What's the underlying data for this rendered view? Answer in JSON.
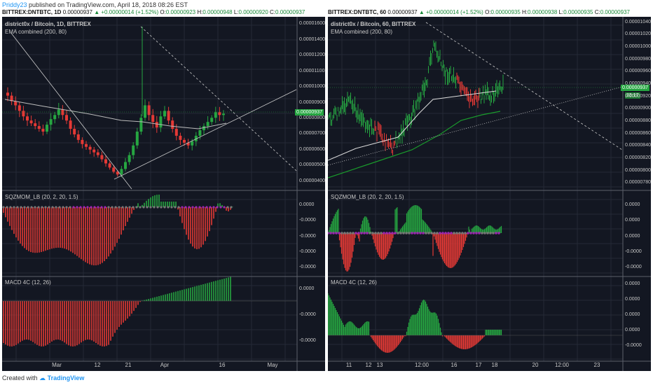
{
  "header": {
    "author": "Priddy23",
    "published_text": "published on TradingView.com, April 18, 2018 08:26 EST"
  },
  "footer": {
    "created_with": "Created with",
    "brand": "TradingView"
  },
  "colors": {
    "background": "#131722",
    "bull": "#26a641",
    "bear": "#e53935",
    "squeeze_dot": "#9c27b0",
    "text": "#c8c8c8"
  },
  "panels": [
    {
      "id": "left",
      "ticker": "BITTREX:DNTBTC, 1D",
      "last": "0.00000937",
      "change": "+0.00000014 (+1.52%)",
      "o": "0.00000923",
      "h": "0.00000948",
      "l": "0.00000920",
      "c": "0.00000937",
      "title": "district0x / Bitcoin, 1D, BITTREX",
      "ema_label": "EMA combined (200, 80)",
      "price_box": "0.00000937",
      "price_yticks": [
        "0.00001600",
        "0.00001400",
        "0.00001200",
        "0.00001100",
        "0.00001000",
        "0.00000900",
        "0.00000800",
        "0.00000700",
        "0.00000600",
        "0.00000500",
        "0.00000400"
      ],
      "sqz_label": "SQZMOM_LB (20, 2, 20, 1.5)",
      "sqz_yticks": [
        "0.0000",
        "-0.0000",
        "-0.0000",
        "-0.0000",
        "-0.0000"
      ],
      "macd_label": "MACD 4C (12, 26)",
      "macd_yticks": [
        "0.0000",
        "-0.0000",
        "-0.0000"
      ],
      "xticks": [
        "Mar",
        "12",
        "21",
        "Apr",
        "16",
        "May"
      ]
    },
    {
      "id": "right",
      "ticker": "BITTREX:DNTBTC, 60",
      "last": "0.00000937",
      "change": "+0.00000014 (+1.52%)",
      "o": "0.00000935",
      "h": "0.00000938",
      "l": "0.00000935",
      "c": "0.00000937",
      "title": "district0x / Bitcoin, 60, BITTREX",
      "ema_label": "EMA combined (200, 80)",
      "price_box": "0.00000937",
      "price_box2": "33:17",
      "price_yticks": [
        "0.00001040",
        "0.00001020",
        "0.00001000",
        "0.00000980",
        "0.00000960",
        "0.00000940",
        "0.00000920",
        "0.00000900",
        "0.00000880",
        "0.00000860",
        "0.00000840",
        "0.00000820",
        "0.00000800",
        "0.00000780"
      ],
      "sqz_label": "SQZMOM_LB (20, 2, 20, 1.5)",
      "sqz_yticks": [
        "0.0000",
        "0.0000",
        "0.0000",
        "-0.0000",
        "-0.0000"
      ],
      "macd_label": "MACD 4C (12, 26)",
      "macd_yticks": [
        "0.0000",
        "0.0000",
        "0.0000",
        "0.0000",
        "-0.0000"
      ],
      "xticks": [
        "11",
        "12",
        "13",
        "12:00",
        "16",
        "17",
        "18",
        "20",
        "12:00",
        "23"
      ]
    }
  ],
  "chart_data": [
    {
      "type": "candlestick",
      "title": "district0x / Bitcoin, 1D, BITTREX",
      "ylim": [
        4e-06,
        1.65e-05
      ],
      "candles_approx_close": [
        1.08e-05,
        1.04e-05,
        1.01e-05,
        9.7e-06,
        9.3e-06,
        9e-06,
        8.8e-06,
        8.6e-06,
        8.4e-06,
        8.2e-06,
        8.7e-06,
        9.1e-06,
        9.4e-06,
        9.8e-06,
        9.4e-06,
        9e-06,
        8.4e-06,
        8e-06,
        7.6e-06,
        7.3e-06,
        7.1e-06,
        6.9e-06,
        6.7e-06,
        6.5e-06,
        6.2e-06,
        5.9e-06,
        5.6e-06,
        5.3e-06,
        5.1e-06,
        5.5e-06,
        6e-06,
        6.5e-06,
        7.2e-06,
        8.2e-06,
        9.2e-06,
        1.01e-05,
        9.4e-06,
        8.9e-06,
        8.5e-06,
        9.3e-06,
        9.7e-06,
        9e-06,
        8.4e-06,
        7.9e-06,
        7.6e-06,
        7.4e-06,
        7.2e-06,
        7.5e-06,
        7.9e-06,
        8.3e-06,
        8.6e-06,
        8.9e-06,
        9.2e-06,
        9.6e-06,
        9.4e-06,
        9.5e-06
      ]
    },
    {
      "type": "candlestick",
      "title": "district0x / Bitcoin, 60, BITTREX",
      "ylim": [
        7.7e-06,
        1.05e-05
      ]
    }
  ]
}
